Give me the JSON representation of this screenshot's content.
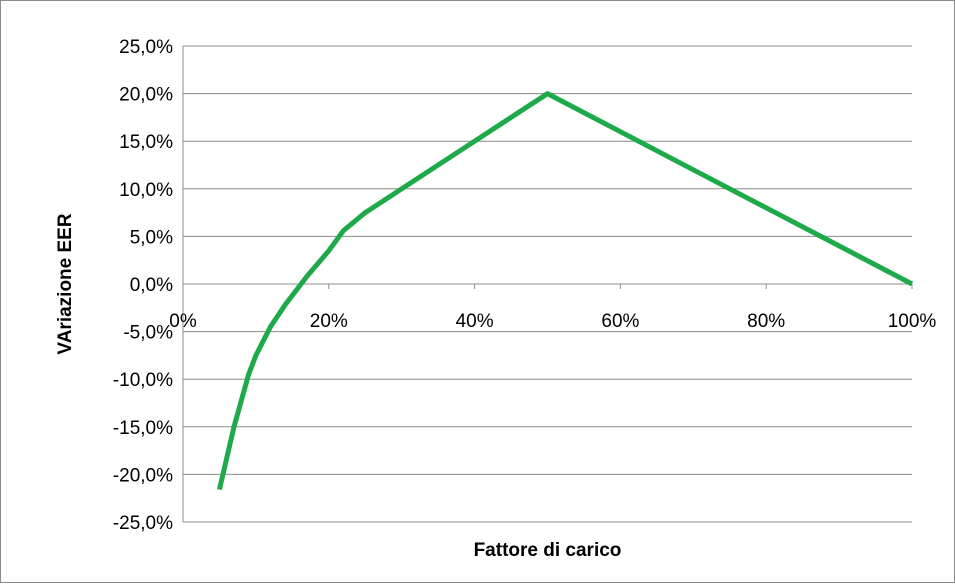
{
  "chart_data": {
    "type": "line",
    "title": "",
    "xlabel": "Fattore di carico",
    "ylabel": "VAriazione EER",
    "xlim": [
      0,
      100
    ],
    "ylim": [
      -25,
      25
    ],
    "x_ticks": [
      0,
      20,
      40,
      60,
      80,
      100
    ],
    "x_tick_labels": [
      "0%",
      "20%",
      "40%",
      "60%",
      "80%",
      "100%"
    ],
    "y_ticks": [
      25,
      20,
      15,
      10,
      5,
      0,
      -5,
      -10,
      -15,
      -20,
      -25
    ],
    "y_tick_labels": [
      "25,0%",
      "20,0%",
      "15,0%",
      "10,0%",
      "5,0%",
      "0,0%",
      "-5,0%",
      "-10,0%",
      "-15,0%",
      "-20,0%",
      "-25,0%"
    ],
    "grid": true,
    "legend": "none",
    "series": [
      {
        "color": "#1faa4a",
        "x": [
          5,
          7,
          9,
          10,
          12,
          14,
          17,
          20,
          22,
          25,
          30,
          40,
          50,
          60,
          70,
          80,
          90,
          100
        ],
        "y": [
          -21.6,
          -15.0,
          -9.5,
          -7.5,
          -4.5,
          -2.2,
          0.8,
          3.5,
          5.6,
          7.5,
          10.0,
          15.0,
          20.0,
          16.0,
          12.0,
          8.0,
          4.0,
          0.0
        ]
      }
    ]
  }
}
